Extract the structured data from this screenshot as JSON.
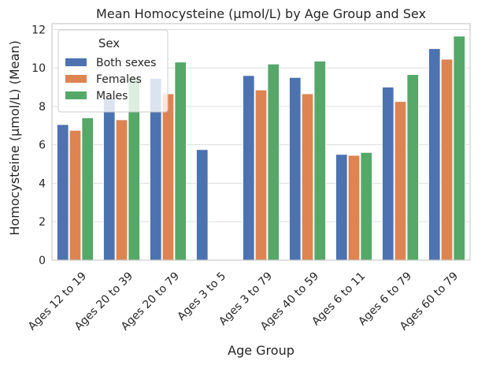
{
  "chart_data": {
    "type": "bar",
    "title": "Mean Homocysteine  (µmol/L) by Age Group and Sex",
    "xlabel": "Age Group",
    "ylabel": "Homocysteine  (µmol/L) (Mean)",
    "ylim": [
      0,
      12.3
    ],
    "yticks": [
      0,
      2,
      4,
      6,
      8,
      10,
      12
    ],
    "grid": true,
    "legend": {
      "title": "Sex",
      "placement": "top-left"
    },
    "categories": [
      "Ages 12 to 19",
      "Ages 20 to 39",
      "Ages 20 to 79",
      "Ages 3 to 5",
      "Ages 3 to 79",
      "Ages 40 to 59",
      "Ages 6 to 11",
      "Ages 6 to 79",
      "Ages 60 to 79"
    ],
    "series": [
      {
        "name": "Both sexes",
        "color": "#4c72b0",
        "values": [
          7.05,
          8.45,
          9.45,
          5.75,
          9.6,
          9.5,
          5.5,
          9.0,
          11.0
        ]
      },
      {
        "name": "Females",
        "color": "#dd8452",
        "values": [
          6.75,
          7.3,
          8.65,
          null,
          8.85,
          8.65,
          5.45,
          8.25,
          10.45
        ]
      },
      {
        "name": "Males",
        "color": "#55a868",
        "values": [
          7.4,
          9.5,
          10.3,
          null,
          10.2,
          10.35,
          5.6,
          9.65,
          11.65
        ]
      }
    ]
  }
}
